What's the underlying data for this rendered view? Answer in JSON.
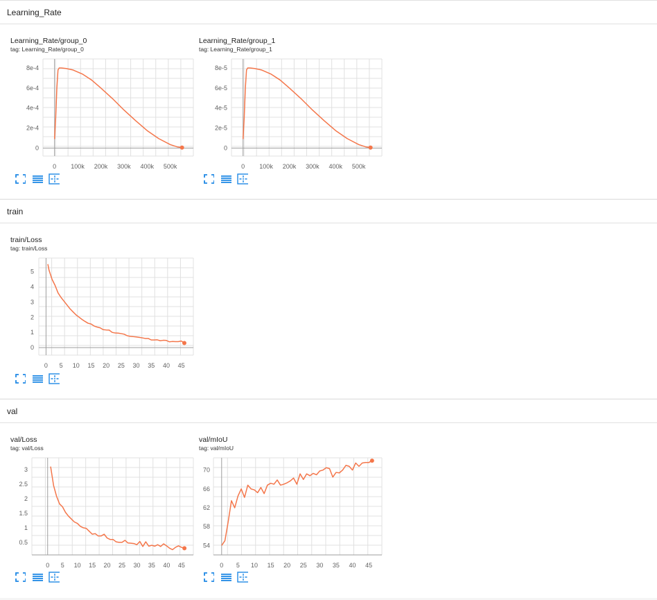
{
  "sections": [
    {
      "name": "Learning_Rate"
    },
    {
      "name": "train"
    },
    {
      "name": "val"
    }
  ],
  "colors": {
    "series": "#f4764a",
    "toolbar": "#1e88e5",
    "grid": "#e0e0e0",
    "axis": "#9e9e9e"
  },
  "icons": [
    "fullscreen-icon",
    "toggle-log-icon",
    "fit-domain-icon"
  ],
  "cards": [
    {
      "id": "lr0",
      "title": "Learning_Rate/group_0",
      "tag": "tag: Learning_Rate/group_0"
    },
    {
      "id": "lr1",
      "title": "Learning_Rate/group_1",
      "tag": "tag: Learning_Rate/group_1"
    },
    {
      "id": "trainloss",
      "title": "train/Loss",
      "tag": "tag: train/Loss"
    },
    {
      "id": "valloss",
      "title": "val/Loss",
      "tag": "tag: val/Loss"
    },
    {
      "id": "valmiou",
      "title": "val/mIoU",
      "tag": "tag: val/mIoU"
    }
  ],
  "chart_data": [
    {
      "type": "line",
      "title": "Learning_Rate/group_0",
      "xlim": [
        -50000,
        600000
      ],
      "ylim": [
        -8e-05,
        0.00089
      ],
      "xticks": [
        0,
        100000,
        200000,
        300000,
        400000,
        500000
      ],
      "xtick_labels": [
        "0",
        "100k",
        "200k",
        "300k",
        "400k",
        "500k"
      ],
      "yticks": [
        0,
        0.0002,
        0.0004,
        0.0006,
        0.0008
      ],
      "ytick_labels": [
        "0",
        "2e-4",
        "4e-4",
        "6e-4",
        "8e-4"
      ],
      "grid": true,
      "x": [
        0,
        5000,
        10000,
        15000,
        20000,
        30000,
        50000,
        80000,
        120000,
        160000,
        200000,
        250000,
        300000,
        350000,
        400000,
        450000,
        500000,
        530000,
        551000
      ],
      "values": [
        9e-05,
        0.0003,
        0.0006,
        0.00078,
        0.0008,
        0.0008,
        0.000795,
        0.00078,
        0.00074,
        0.00068,
        0.0006,
        0.000495,
        0.00038,
        0.000275,
        0.000175,
        9.5e-05,
        3.5e-05,
        1.2e-05,
        5e-06
      ]
    },
    {
      "type": "line",
      "title": "Learning_Rate/group_1",
      "xlim": [
        -50000,
        600000
      ],
      "ylim": [
        -8e-06,
        8.9e-05
      ],
      "xticks": [
        0,
        100000,
        200000,
        300000,
        400000,
        500000
      ],
      "xtick_labels": [
        "0",
        "100k",
        "200k",
        "300k",
        "400k",
        "500k"
      ],
      "yticks": [
        0,
        2e-05,
        4e-05,
        6e-05,
        8e-05
      ],
      "ytick_labels": [
        "0",
        "2e-5",
        "4e-5",
        "6e-5",
        "8e-5"
      ],
      "grid": true,
      "x": [
        0,
        5000,
        10000,
        15000,
        20000,
        30000,
        50000,
        80000,
        120000,
        160000,
        200000,
        250000,
        300000,
        350000,
        400000,
        450000,
        500000,
        530000,
        551000
      ],
      "values": [
        9e-06,
        3e-05,
        6e-05,
        7.8e-05,
        8e-05,
        8e-05,
        7.95e-05,
        7.8e-05,
        7.4e-05,
        6.8e-05,
        6e-05,
        4.95e-05,
        3.8e-05,
        2.75e-05,
        1.75e-05,
        9.5e-06,
        3.5e-06,
        1.2e-06,
        5e-07
      ]
    },
    {
      "type": "line",
      "title": "train/Loss",
      "xlim": [
        -2.4,
        49
      ],
      "ylim": [
        -0.5,
        5.9
      ],
      "xticks": [
        0,
        5,
        10,
        15,
        20,
        25,
        30,
        35,
        40,
        45
      ],
      "xtick_labels": [
        "0",
        "5",
        "10",
        "15",
        "20",
        "25",
        "30",
        "35",
        "40",
        "45"
      ],
      "yticks": [
        0,
        1,
        2,
        3,
        4,
        5
      ],
      "ytick_labels": [
        "0",
        "1",
        "2",
        "3",
        "4",
        "5"
      ],
      "grid": true,
      "x": [
        0.6,
        1,
        2,
        3,
        4,
        5,
        6,
        7,
        8,
        9,
        10,
        11,
        12,
        13,
        14,
        15,
        16,
        17,
        18,
        19,
        20,
        21,
        22,
        23,
        24,
        25,
        26,
        27,
        28,
        29,
        30,
        31,
        32,
        33,
        34,
        35,
        36,
        37,
        38,
        39,
        40,
        41,
        42,
        43,
        44,
        45,
        46
      ],
      "values": [
        5.5,
        5.1,
        4.5,
        4.1,
        3.6,
        3.3,
        3.05,
        2.8,
        2.55,
        2.35,
        2.15,
        2.0,
        1.85,
        1.72,
        1.6,
        1.55,
        1.42,
        1.35,
        1.3,
        1.18,
        1.16,
        1.15,
        1.0,
        0.96,
        0.95,
        0.92,
        0.88,
        0.78,
        0.74,
        0.72,
        0.7,
        0.67,
        0.64,
        0.6,
        0.6,
        0.5,
        0.5,
        0.51,
        0.45,
        0.48,
        0.47,
        0.38,
        0.4,
        0.39,
        0.39,
        0.43,
        0.3
      ]
    },
    {
      "type": "line",
      "title": "val/Loss",
      "xlim": [
        -5.3,
        49
      ],
      "ylim": [
        0.07,
        3.4
      ],
      "xticks": [
        0,
        5,
        10,
        15,
        20,
        25,
        30,
        35,
        40,
        45
      ],
      "xtick_labels": [
        "0",
        "5",
        "10",
        "15",
        "20",
        "25",
        "30",
        "35",
        "40",
        "45"
      ],
      "yticks": [
        0.5,
        1,
        1.5,
        2,
        2.5,
        3
      ],
      "ytick_labels": [
        "0.5",
        "1",
        "1.5",
        "2",
        "2.5",
        "3"
      ],
      "grid": true,
      "x": [
        1,
        2,
        3,
        4,
        5,
        6,
        7,
        8,
        9,
        10,
        11,
        12,
        13,
        14,
        15,
        16,
        17,
        18,
        19,
        20,
        21,
        22,
        23,
        24,
        25,
        26,
        27,
        28,
        29,
        30,
        31,
        32,
        33,
        34,
        35,
        36,
        37,
        38,
        39,
        40,
        41,
        42,
        43,
        44,
        45,
        46
      ],
      "values": [
        3.1,
        2.45,
        2.08,
        1.82,
        1.72,
        1.53,
        1.4,
        1.3,
        1.2,
        1.15,
        1.05,
        1.0,
        0.98,
        0.88,
        0.78,
        0.8,
        0.72,
        0.72,
        0.78,
        0.65,
        0.6,
        0.6,
        0.52,
        0.5,
        0.5,
        0.57,
        0.48,
        0.47,
        0.46,
        0.42,
        0.53,
        0.36,
        0.52,
        0.37,
        0.4,
        0.37,
        0.42,
        0.36,
        0.45,
        0.38,
        0.3,
        0.25,
        0.33,
        0.38,
        0.33,
        0.3
      ]
    },
    {
      "type": "line",
      "title": "val/mIoU",
      "xlim": [
        -2.5,
        49
      ],
      "ylim": [
        52,
        72.6
      ],
      "xticks": [
        0,
        5,
        10,
        15,
        20,
        25,
        30,
        35,
        40,
        45
      ],
      "xtick_labels": [
        "0",
        "5",
        "10",
        "15",
        "20",
        "25",
        "30",
        "35",
        "40",
        "45"
      ],
      "yticks": [
        54,
        58,
        62,
        66,
        70
      ],
      "ytick_labels": [
        "54",
        "58",
        "62",
        "66",
        "70"
      ],
      "grid": true,
      "x": [
        0,
        1,
        2,
        3,
        4,
        5,
        6,
        7,
        8,
        9,
        10,
        11,
        12,
        13,
        14,
        15,
        16,
        17,
        18,
        19,
        20,
        21,
        22,
        23,
        24,
        25,
        26,
        27,
        28,
        29,
        30,
        31,
        32,
        33,
        34,
        35,
        36,
        37,
        38,
        39,
        40,
        41,
        42,
        43,
        44,
        45,
        46
      ],
      "values": [
        54.0,
        55.0,
        59.0,
        63.5,
        62.0,
        64.5,
        66.0,
        64.2,
        66.8,
        66.0,
        65.8,
        65.2,
        66.3,
        65.0,
        66.8,
        67.2,
        67.0,
        67.9,
        66.8,
        67.0,
        67.3,
        67.7,
        68.3,
        67.0,
        69.2,
        68.0,
        69.2,
        68.8,
        69.3,
        69.0,
        69.8,
        70.0,
        70.5,
        70.3,
        68.5,
        69.5,
        69.4,
        70.0,
        71.0,
        70.8,
        70.0,
        71.5,
        70.8,
        71.5,
        71.6,
        71.6,
        72.0
      ]
    }
  ]
}
